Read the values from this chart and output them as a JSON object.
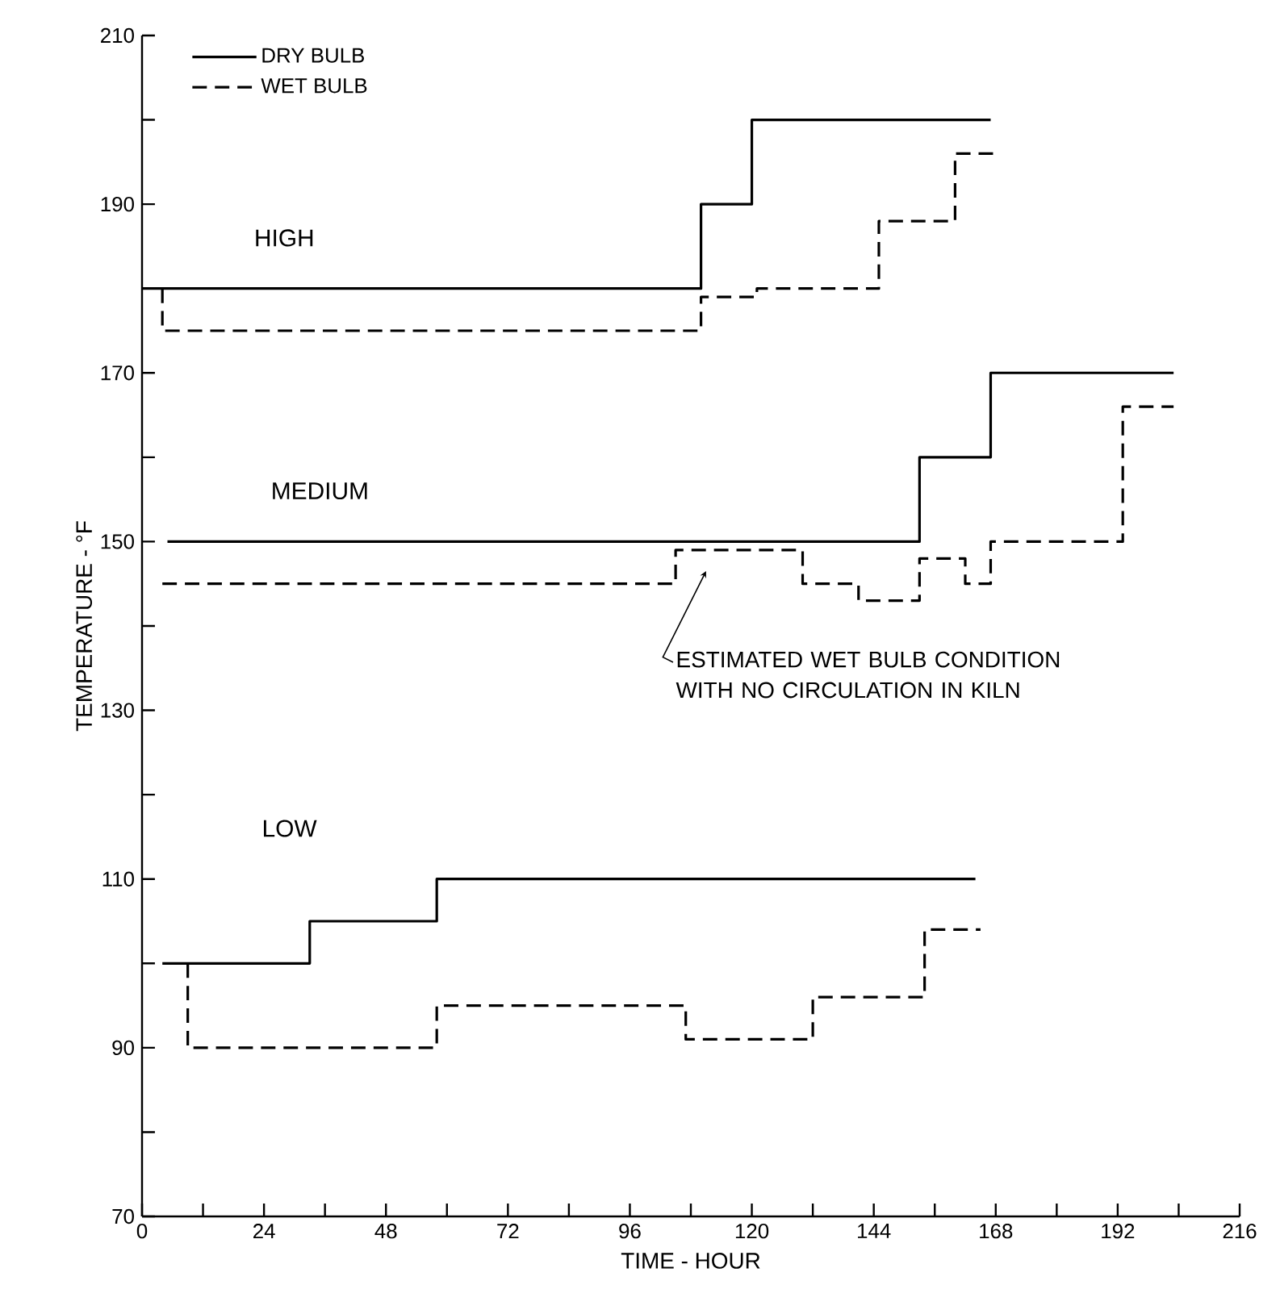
{
  "chart_data": {
    "type": "step",
    "xlabel": "TIME - HOUR",
    "ylabel": "TEMPERATURE - °F",
    "xlim": [
      0,
      216
    ],
    "ylim": [
      70,
      210
    ],
    "xticks": [
      0,
      {
        "value": 12,
        "label": null
      },
      24,
      {
        "value": 36,
        "label": null
      },
      48,
      {
        "value": 60,
        "label": null
      },
      72,
      {
        "value": 84,
        "label": null
      },
      96,
      {
        "value": 108,
        "label": null
      },
      120,
      {
        "value": 132,
        "label": null
      },
      144,
      {
        "value": 156,
        "label": null
      },
      168,
      {
        "value": 180,
        "label": null
      },
      192,
      {
        "value": 204,
        "label": null
      },
      216
    ],
    "yticks": [
      70,
      {
        "value": 80,
        "label": null
      },
      90,
      {
        "value": 100,
        "label": null
      },
      110,
      {
        "value": 120,
        "label": null
      },
      130,
      {
        "value": 140,
        "label": null
      },
      150,
      {
        "value": 160,
        "label": null
      },
      170,
      {
        "value": 180,
        "label": null
      },
      190,
      {
        "value": 200,
        "label": null
      },
      210
    ],
    "legend": "top left",
    "marker": "none",
    "series": [
      {
        "name": "DRY BULB",
        "color": "#000000",
        "line_style": "solid",
        "x": [
          0,
          110,
          120,
          167
        ],
        "values": [
          180,
          190,
          200,
          200
        ]
      },
      {
        "name": "WET BULB",
        "color": "#000000",
        "line_style": "dashed",
        "x": [
          4,
          4,
          110,
          121,
          145,
          160,
          168
        ],
        "values": [
          180,
          175,
          179,
          180,
          188,
          196,
          196
        ]
      },
      {
        "color": "#000000",
        "line_style": "solid",
        "x": [
          5,
          153,
          167,
          203
        ],
        "values": [
          150,
          160,
          170,
          170
        ]
      },
      {
        "color": "#000000",
        "line_style": "dashed",
        "x": [
          4,
          105,
          130,
          141,
          153,
          162,
          167,
          193,
          203
        ],
        "values": [
          145,
          149,
          145,
          143,
          148,
          145,
          150,
          166,
          166
        ]
      },
      {
        "color": "#000000",
        "line_style": "solid",
        "x": [
          4,
          33,
          58,
          164
        ],
        "values": [
          100,
          105,
          110,
          110
        ]
      },
      {
        "color": "#000000",
        "line_style": "dashed",
        "x": [
          9,
          9,
          58,
          107,
          132,
          154,
          165
        ],
        "values": [
          100,
          90,
          95,
          91,
          96,
          104,
          104
        ]
      }
    ],
    "annotations": [
      "HIGH",
      "MEDIUM",
      "LOW",
      "ESTIMATED WET BULB CONDITION WITH NO CIRCULATION IN KILN"
    ]
  }
}
